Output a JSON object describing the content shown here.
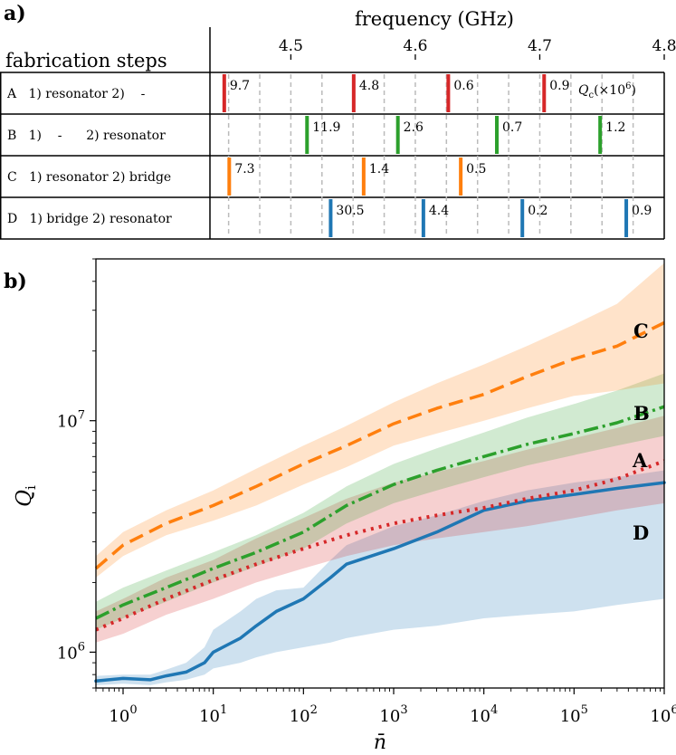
{
  "panel_a": {
    "label": "a)",
    "title": "frequency (GHz)",
    "header": "fabrication steps",
    "qc_label": "Q",
    "qc_sub": "c",
    "qc_unit": "(×10",
    "qc_exp": "6",
    "qc_close": ")",
    "colors": {
      "A": "#d62728",
      "B": "#2ca02c",
      "C": "#ff7f0e",
      "D": "#1f77b4"
    },
    "rows": [
      {
        "id": "A",
        "text": "A   1) resonator 2)    -"
      },
      {
        "id": "B",
        "text": "B   1)    -      2) resonator"
      },
      {
        "id": "C",
        "text": "C   1) resonator 2) bridge"
      },
      {
        "id": "D",
        "text": "D   1) bridge 2) resonator"
      }
    ]
  },
  "panel_b": {
    "label": "b)",
    "series_labels": {
      "A": "A",
      "B": "B",
      "C": "C",
      "D": "D"
    },
    "ylabel": "Q",
    "ylabel_sub": "i",
    "xlabel": "n̄",
    "xticks": [
      {
        "base": "10",
        "exp": "0"
      },
      {
        "base": "10",
        "exp": "1"
      },
      {
        "base": "10",
        "exp": "2"
      },
      {
        "base": "10",
        "exp": "3"
      },
      {
        "base": "10",
        "exp": "4"
      },
      {
        "base": "10",
        "exp": "5"
      },
      {
        "base": "10",
        "exp": "6"
      }
    ],
    "yticks": [
      {
        "base": "10",
        "exp": "6"
      },
      {
        "base": "10",
        "exp": "7"
      }
    ]
  },
  "chart_data": [
    {
      "type": "bar",
      "title": "frequency (GHz)",
      "xlim": [
        4.435,
        4.8
      ],
      "xticks": [
        4.5,
        4.6,
        4.7,
        4.8
      ],
      "resonances": {
        "A": [
          {
            "f": 4.4465,
            "qc": "9.7"
          },
          {
            "f": 4.5505,
            "qc": "4.8"
          },
          {
            "f": 4.6265,
            "qc": "0.6"
          },
          {
            "f": 4.7035,
            "qc": "0.9"
          }
        ],
        "B": [
          {
            "f": 4.513,
            "qc": "11.9"
          },
          {
            "f": 4.586,
            "qc": "2.6"
          },
          {
            "f": 4.6655,
            "qc": "0.7"
          },
          {
            "f": 4.7485,
            "qc": "1.2"
          }
        ],
        "C": [
          {
            "f": 4.4505,
            "qc": "7.3"
          },
          {
            "f": 4.5585,
            "qc": "1.4"
          },
          {
            "f": 4.6365,
            "qc": "0.5"
          }
        ],
        "D": [
          {
            "f": 4.532,
            "qc": "30.5"
          },
          {
            "f": 4.6065,
            "qc": "4.4"
          },
          {
            "f": 4.686,
            "qc": "0.2"
          },
          {
            "f": 4.7695,
            "qc": "0.9"
          }
        ]
      }
    },
    {
      "type": "line",
      "xscale": "log",
      "yscale": "log",
      "xlim": [
        0.5,
        1000000
      ],
      "ylim": [
        700000,
        50000000
      ],
      "xlabel": "n̄",
      "ylabel": "Qi",
      "series": [
        {
          "name": "A",
          "x": [
            0.5,
            1,
            3,
            10,
            30,
            100,
            300,
            1000,
            3000,
            10000,
            30000,
            100000,
            300000,
            1000000
          ],
          "y": [
            1250000,
            1400000,
            1700000,
            2050000,
            2400000,
            2800000,
            3200000,
            3600000,
            3900000,
            4200000,
            4600000,
            5000000,
            5600000,
            6700000
          ],
          "lower": [
            1100000,
            1200000,
            1450000,
            1700000,
            2000000,
            2300000,
            2600000,
            2900000,
            3100000,
            3300000,
            3500000,
            3800000,
            4100000,
            4400000
          ],
          "upper": [
            1500000,
            1700000,
            2100000,
            2500000,
            3100000,
            3800000,
            4600000,
            5400000,
            6000000,
            6700000,
            7500000,
            8400000,
            9300000,
            10500000
          ]
        },
        {
          "name": "B",
          "x": [
            0.5,
            1,
            3,
            10,
            30,
            100,
            300,
            1000,
            3000,
            10000,
            30000,
            100000,
            300000,
            1000000
          ],
          "y": [
            1400000,
            1600000,
            1900000,
            2300000,
            2700000,
            3300000,
            4300000,
            5300000,
            6100000,
            7000000,
            7900000,
            8800000,
            9800000,
            11500000
          ],
          "lower": [
            1250000,
            1400000,
            1650000,
            2000000,
            2350000,
            2800000,
            3600000,
            4400000,
            5000000,
            5700000,
            6400000,
            7100000,
            7800000,
            8600000
          ],
          "upper": [
            1650000,
            1900000,
            2250000,
            2700000,
            3200000,
            4000000,
            5200000,
            6500000,
            7600000,
            8900000,
            10300000,
            11800000,
            13500000,
            16000000
          ]
        },
        {
          "name": "C",
          "x": [
            0.5,
            1,
            3,
            10,
            30,
            100,
            300,
            1000,
            3000,
            10000,
            30000,
            100000,
            300000,
            1000000
          ],
          "y": [
            2300000,
            2900000,
            3600000,
            4300000,
            5200000,
            6500000,
            7800000,
            9700000,
            11300000,
            13000000,
            15500000,
            18500000,
            21000000,
            26500000
          ],
          "lower": [
            2100000,
            2600000,
            3200000,
            3700000,
            4300000,
            5300000,
            6300000,
            7800000,
            8800000,
            10000000,
            11300000,
            12800000,
            13500000,
            14500000
          ],
          "upper": [
            2600000,
            3300000,
            4100000,
            5000000,
            6200000,
            7800000,
            9500000,
            12000000,
            14500000,
            17500000,
            21000000,
            26000000,
            32000000,
            48000000
          ]
        },
        {
          "name": "D",
          "x": [
            0.5,
            1,
            2,
            3,
            5,
            8,
            10,
            20,
            30,
            50,
            100,
            200,
            300,
            1000,
            3000,
            10000,
            30000,
            100000,
            300000,
            1000000
          ],
          "y": [
            750000,
            770000,
            760000,
            790000,
            820000,
            900000,
            1000000,
            1150000,
            1300000,
            1500000,
            1700000,
            2100000,
            2400000,
            2800000,
            3300000,
            4100000,
            4500000,
            4800000,
            5100000,
            5400000
          ],
          "lower": [
            720000,
            730000,
            720000,
            740000,
            760000,
            800000,
            850000,
            900000,
            950000,
            1000000,
            1050000,
            1100000,
            1150000,
            1250000,
            1300000,
            1400000,
            1450000,
            1500000,
            1600000,
            1700000
          ],
          "upper": [
            790000,
            800000,
            800000,
            840000,
            900000,
            1050000,
            1250000,
            1500000,
            1700000,
            1850000,
            1900000,
            2500000,
            2900000,
            3500000,
            3900000,
            4500000,
            5000000,
            5400000,
            5700000,
            6100000
          ]
        }
      ]
    }
  ]
}
